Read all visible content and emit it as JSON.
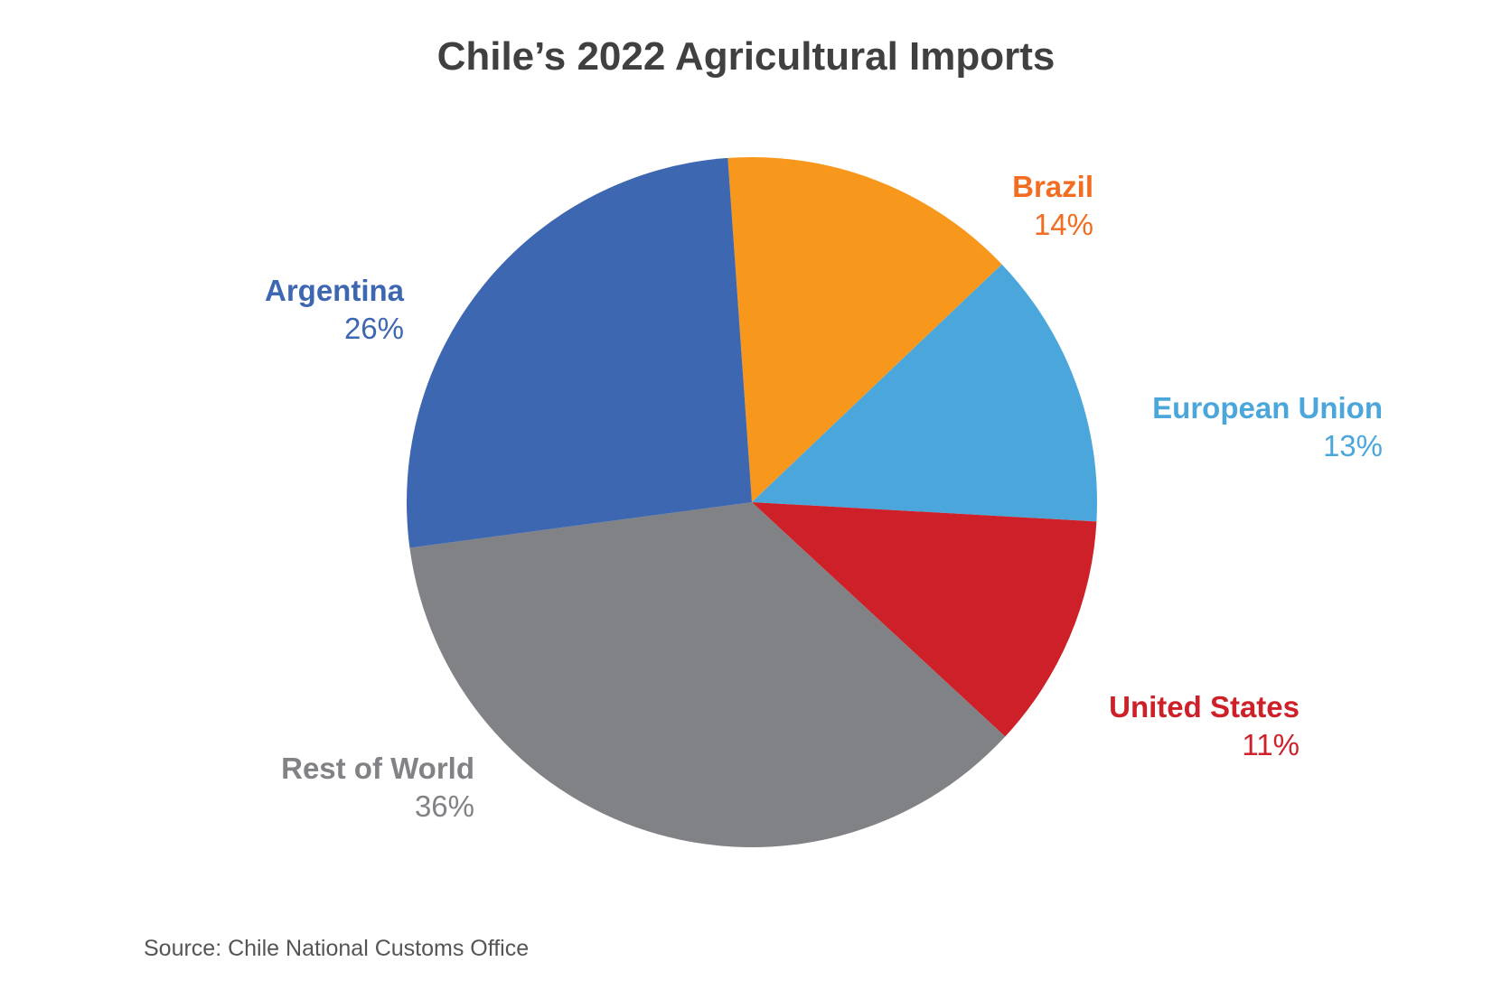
{
  "chart_data": {
    "type": "pie",
    "title": "Chile’s 2022 Agricultural Imports",
    "source": "Source: Chile National Customs Office",
    "slices": [
      {
        "label": "Brazil",
        "value": 14,
        "value_label": "14%",
        "color": "#F7981D",
        "text_color": "#F26C21"
      },
      {
        "label": "European Union",
        "value": 13,
        "value_label": "13%",
        "color": "#4BA7DB",
        "text_color": "#4BA7DB"
      },
      {
        "label": "United States",
        "value": 11,
        "value_label": "11%",
        "color": "#CD2028",
        "text_color": "#CD2028"
      },
      {
        "label": "Rest of World",
        "value": 36,
        "value_label": "36%",
        "color": "#818285",
        "text_color": "#818285"
      },
      {
        "label": "Argentina",
        "value": 26,
        "value_label": "26%",
        "color": "#3E67B1",
        "text_color": "#3E67B1"
      }
    ]
  }
}
